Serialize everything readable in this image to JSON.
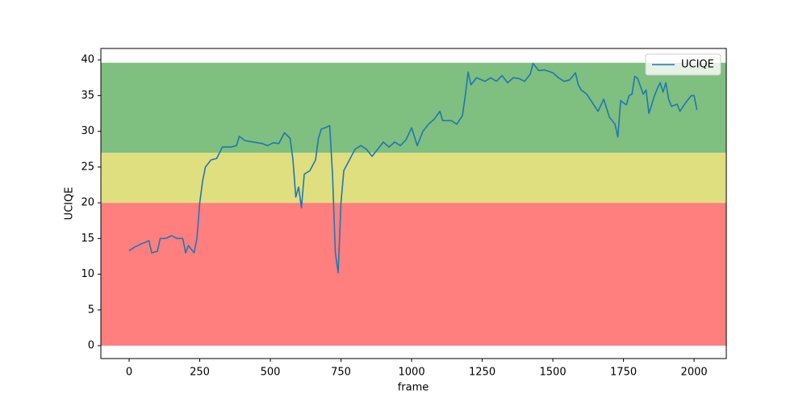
{
  "chart_data": {
    "type": "line",
    "xlabel": "frame",
    "ylabel": "UCIQE",
    "xlim": [
      -100,
      2114
    ],
    "ylim": [
      -1.8,
      41.6
    ],
    "xticks": [
      0,
      250,
      500,
      750,
      1000,
      1250,
      1500,
      1750,
      2000
    ],
    "yticks": [
      0,
      5,
      10,
      15,
      20,
      25,
      30,
      35,
      40
    ],
    "bands": [
      {
        "from": 0,
        "to": 20,
        "color": "#ff7f7f"
      },
      {
        "from": 20,
        "to": 27,
        "color": "#dfdf7f"
      },
      {
        "from": 27,
        "to": 39.6,
        "color": "#7fbf7f"
      }
    ],
    "legend": "upper right",
    "x": [
      0,
      20,
      40,
      60,
      70,
      80,
      100,
      110,
      130,
      150,
      170,
      190,
      200,
      210,
      220,
      230,
      240,
      250,
      260,
      270,
      290,
      310,
      330,
      360,
      380,
      390,
      410,
      440,
      470,
      490,
      510,
      530,
      550,
      570,
      580,
      590,
      600,
      610,
      620,
      640,
      660,
      670,
      680,
      700,
      710,
      720,
      730,
      740,
      750,
      760,
      780,
      800,
      820,
      840,
      860,
      880,
      900,
      920,
      940,
      960,
      980,
      1000,
      1020,
      1040,
      1060,
      1080,
      1100,
      1110,
      1140,
      1160,
      1180,
      1190,
      1200,
      1210,
      1230,
      1260,
      1280,
      1300,
      1320,
      1340,
      1360,
      1380,
      1400,
      1420,
      1430,
      1450,
      1470,
      1500,
      1520,
      1540,
      1560,
      1580,
      1590,
      1600,
      1620,
      1640,
      1660,
      1680,
      1700,
      1720,
      1730,
      1740,
      1760,
      1770,
      1780,
      1790,
      1800,
      1820,
      1830,
      1840,
      1860,
      1870,
      1880,
      1890,
      1900,
      1910,
      1920,
      1940,
      1950,
      1970,
      1990,
      2000,
      2010
    ],
    "series": [
      {
        "name": "UCIQE",
        "color": "#1f77b4",
        "values": [
          13.3,
          13.8,
          14.2,
          14.5,
          14.7,
          13.0,
          13.2,
          15.0,
          15.0,
          15.4,
          15.0,
          15.0,
          13.0,
          14.0,
          13.5,
          13.0,
          15.0,
          20.0,
          23.0,
          25.0,
          26.0,
          26.2,
          27.8,
          27.8,
          28.0,
          29.3,
          28.7,
          28.5,
          28.3,
          28.0,
          28.4,
          28.3,
          29.8,
          29.0,
          26.0,
          20.8,
          22.2,
          19.3,
          24.0,
          24.5,
          26.0,
          29.0,
          30.3,
          30.6,
          30.8,
          24.0,
          13.0,
          10.2,
          20.0,
          24.5,
          26.0,
          27.5,
          28.0,
          27.5,
          26.5,
          27.5,
          28.5,
          27.8,
          28.5,
          28.0,
          28.8,
          30.5,
          28.0,
          30.0,
          31.0,
          31.7,
          32.8,
          31.5,
          31.5,
          31.0,
          32.2,
          35.0,
          38.3,
          36.5,
          37.5,
          37.0,
          37.5,
          37.0,
          37.8,
          36.8,
          37.5,
          37.4,
          37.0,
          38.0,
          39.5,
          38.5,
          38.6,
          38.2,
          37.5,
          37.0,
          37.2,
          38.2,
          36.5,
          35.8,
          35.2,
          34.0,
          32.8,
          34.5,
          32.0,
          31.0,
          29.2,
          34.3,
          33.7,
          35.0,
          35.2,
          37.7,
          37.4,
          35.2,
          35.8,
          32.5,
          35.0,
          36.0,
          36.8,
          35.5,
          36.8,
          34.5,
          33.5,
          33.8,
          32.8,
          34.0,
          35.0,
          35.0,
          33.0
        ]
      }
    ]
  }
}
